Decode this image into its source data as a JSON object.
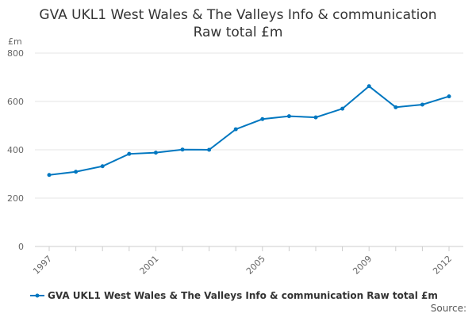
{
  "chart_data": {
    "type": "line",
    "title": "GVA UKL1 West Wales & The Valleys Info & communication",
    "subtitle": "Raw total £m",
    "ylabel": "£m",
    "xlabel": "",
    "ylim": [
      0,
      800
    ],
    "yticks": [
      0,
      200,
      400,
      600,
      800
    ],
    "xticks": [
      "1997",
      "2001",
      "2005",
      "2009",
      "2012"
    ],
    "grid": true,
    "legend_position": "bottom-left",
    "x": [
      1997,
      1998,
      1999,
      2000,
      2001,
      2002,
      2003,
      2004,
      2005,
      2006,
      2007,
      2008,
      2009,
      2010,
      2011,
      2012
    ],
    "series": [
      {
        "name": "GVA UKL1 West Wales & The Valleys Info & communication Raw total £m",
        "color": "#0077c0",
        "values": [
          296,
          309,
          332,
          383,
          388,
          401,
          400,
          485,
          527,
          539,
          534,
          570,
          663,
          576,
          587,
          621
        ]
      }
    ]
  },
  "source": "Source:"
}
